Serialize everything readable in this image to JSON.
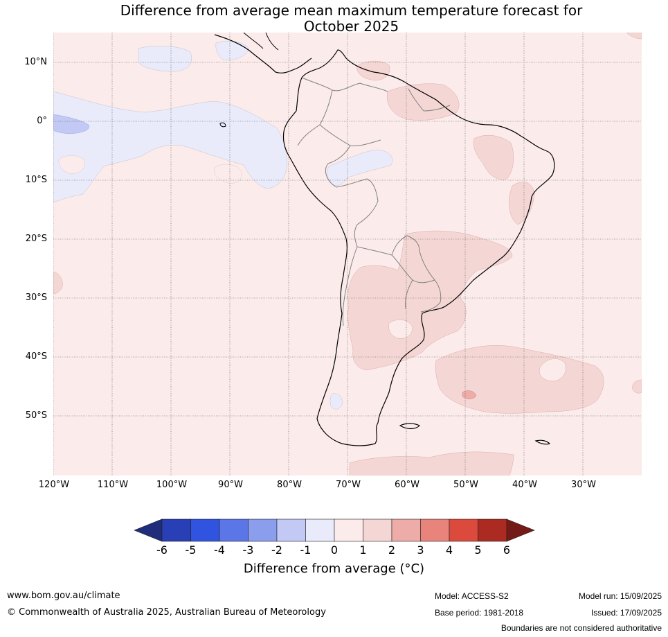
{
  "title_line1": "Difference from average mean maximum temperature forecast for",
  "title_line2": "October 2025",
  "lat_labels": [
    "10°N",
    "0°",
    "10°S",
    "20°S",
    "30°S",
    "40°S",
    "50°S"
  ],
  "lon_labels": [
    "120°W",
    "110°W",
    "100°W",
    "90°W",
    "80°W",
    "70°W",
    "60°W",
    "50°W",
    "40°W",
    "30°W"
  ],
  "colorbar": {
    "ticks": [
      "-6",
      "-5",
      "-4",
      "-3",
      "-2",
      "-1",
      "0",
      "1",
      "2",
      "3",
      "4",
      "5",
      "6"
    ],
    "colors": [
      "#1f2d7a",
      "#283fb5",
      "#3154e0",
      "#5b76e6",
      "#8b9ded",
      "#c2c9f5",
      "#e9ebfb",
      "#fbeceb",
      "#f4d7d5",
      "#edaca8",
      "#e8847c",
      "#dc4a3e",
      "#ab2a22",
      "#741b17"
    ],
    "label": "Difference from average (°C)"
  },
  "map_colors": {
    "plus_0_1": "#fbeceb",
    "plus_1_2": "#f4d7d5",
    "plus_2_3": "#edaca8",
    "minus_1_0": "#e9ebfb",
    "minus_2_1": "#c2c9f5"
  },
  "footer": {
    "website": "www.bom.gov.au/climate",
    "copyright": "© Commonwealth of Australia 2025, Australian Bureau of Meteorology",
    "model": "Model: ACCESS-S2",
    "base_period": "Base period: 1981-2018",
    "model_run": "Model run: 15/09/2025",
    "issued": "Issued: 17/09/2025",
    "disclaimer": "Boundaries are not considered authoritative"
  }
}
